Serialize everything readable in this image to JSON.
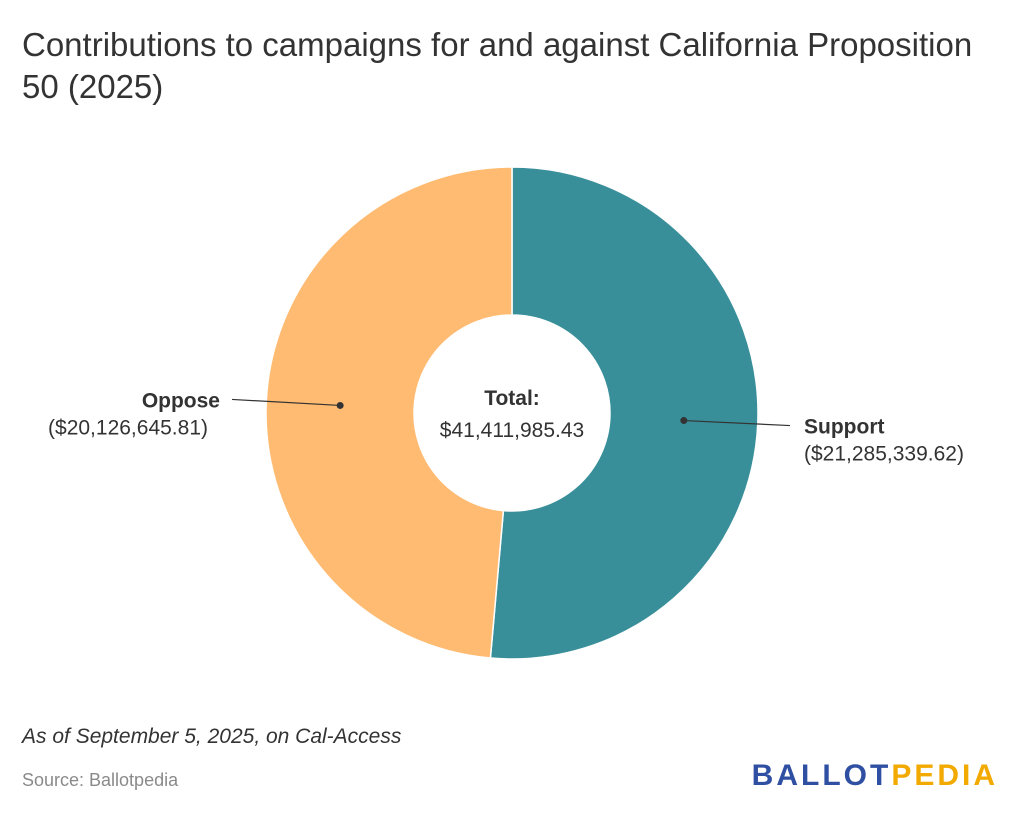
{
  "title": "Contributions to campaigns for and against California Proposition 50 (2025)",
  "footnote": "As of September 5, 2025, on Cal-Access",
  "source": "Source: Ballotpedia",
  "logo": {
    "part1": "BALLOT",
    "part2": "PEDIA",
    "color1": "#2f4fa2",
    "color2": "#f2a900"
  },
  "chart_data": {
    "type": "pie",
    "variant": "donut",
    "center_label": {
      "title": "Total:",
      "value": "$41,411,985.43"
    },
    "slices": [
      {
        "label": "Support",
        "value": 21285339.62,
        "value_label": "($21,285,339.62)",
        "color": "#388f9a"
      },
      {
        "label": "Oppose",
        "value": 20126645.81,
        "value_label": "($20,126,645.81)",
        "color": "#ffbb72"
      }
    ]
  }
}
